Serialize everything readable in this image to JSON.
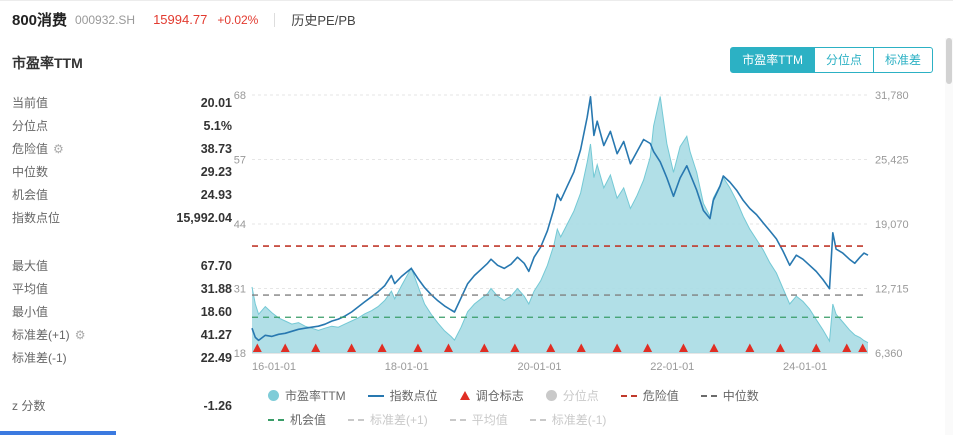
{
  "header": {
    "title": "800消费",
    "code": "000932.SH",
    "price": "15994.77",
    "change": "+0.02%",
    "nav_label": "历史PE/PB"
  },
  "panel": {
    "title": "市盈率TTM",
    "tabs": [
      {
        "label": "市盈率TTM",
        "active": true
      },
      {
        "label": "分位点",
        "active": false
      },
      {
        "label": "标准差",
        "active": false
      }
    ],
    "accent_color": "#2cb1c4"
  },
  "stats": {
    "groups": [
      [
        {
          "label": "当前值",
          "value": "20.01"
        },
        {
          "label": "分位点",
          "value": "5.1%"
        },
        {
          "label": "危险值",
          "value": "38.73",
          "gear": true
        },
        {
          "label": "中位数",
          "value": "29.23"
        },
        {
          "label": "机会值",
          "value": "24.93"
        },
        {
          "label": "指数点位",
          "value": "15,992.04"
        }
      ],
      [
        {
          "label": "最大值",
          "value": "67.70"
        },
        {
          "label": "平均值",
          "value": "31.88"
        },
        {
          "label": "最小值",
          "value": "18.60"
        },
        {
          "label": "标准差(+1)",
          "value": "41.27",
          "gear": true
        },
        {
          "label": "标准差(-1)",
          "value": "22.49"
        }
      ],
      [
        {
          "label": "z 分数",
          "value": "-1.26"
        }
      ]
    ]
  },
  "chart_data": {
    "type": "area+line",
    "title": "市盈率TTM",
    "x_range": [
      2016.0,
      2025.28
    ],
    "x_ticks": [
      {
        "label": "16-01-01",
        "t": 2016
      },
      {
        "label": "18-01-01",
        "t": 2018
      },
      {
        "label": "20-01-01",
        "t": 2020
      },
      {
        "label": "22-01-01",
        "t": 2022
      },
      {
        "label": "24-01-01",
        "t": 2024
      }
    ],
    "left_axis": {
      "min": 18,
      "max": 68,
      "tick_labels": [
        "18",
        "31",
        "44",
        "57",
        "68"
      ]
    },
    "right_axis": {
      "min": 6360,
      "max": 31780,
      "tick_labels": [
        "6,360",
        "12,715",
        "19,070",
        "25,425",
        "31,780"
      ]
    },
    "x": [
      2016.0,
      2016.05,
      2016.1,
      2016.2,
      2016.3,
      2016.4,
      2016.5,
      2016.6,
      2016.7,
      2016.8,
      2016.9,
      2017.0,
      2017.1,
      2017.2,
      2017.3,
      2017.4,
      2017.5,
      2017.6,
      2017.7,
      2017.8,
      2017.9,
      2018.0,
      2018.1,
      2018.15,
      2018.25,
      2018.4,
      2018.5,
      2018.6,
      2018.7,
      2018.8,
      2018.9,
      2019.0,
      2019.05,
      2019.15,
      2019.25,
      2019.35,
      2019.45,
      2019.55,
      2019.6,
      2019.7,
      2019.8,
      2019.9,
      2020.0,
      2020.1,
      2020.17,
      2020.25,
      2020.35,
      2020.45,
      2020.55,
      2020.6,
      2020.65,
      2020.75,
      2020.85,
      2020.95,
      2021.05,
      2021.1,
      2021.15,
      2021.2,
      2021.3,
      2021.4,
      2021.5,
      2021.6,
      2021.7,
      2021.8,
      2021.9,
      2022.0,
      2022.05,
      2022.15,
      2022.2,
      2022.25,
      2022.35,
      2022.45,
      2022.55,
      2022.6,
      2022.7,
      2022.8,
      2022.9,
      2022.95,
      2023.05,
      2023.1,
      2023.2,
      2023.3,
      2023.4,
      2023.5,
      2023.6,
      2023.7,
      2023.8,
      2023.9,
      2024.0,
      2024.1,
      2024.2,
      2024.3,
      2024.4,
      2024.5,
      2024.6,
      2024.7,
      2024.75,
      2024.8,
      2024.9,
      2025.0,
      2025.08,
      2025.16,
      2025.22,
      2025.28
    ],
    "series": [
      {
        "name": "市盈率TTM",
        "type": "area",
        "axis": "left",
        "color": "#a8dce4",
        "edge": "#74c9d5",
        "values": [
          30.8,
          27.5,
          25.5,
          27.0,
          25.8,
          24.8,
          24.2,
          23.6,
          23.9,
          23.2,
          22.8,
          22.4,
          22.8,
          23.2,
          23.0,
          23.6,
          24.2,
          24.8,
          25.6,
          26.2,
          27.0,
          28.2,
          30.0,
          28.5,
          31.0,
          34.5,
          31.0,
          27.5,
          25.5,
          23.8,
          22.3,
          21.2,
          20.5,
          23.0,
          26.0,
          27.5,
          28.5,
          29.5,
          30.5,
          29.0,
          28.2,
          29.0,
          30.5,
          29.0,
          27.5,
          30.0,
          32.0,
          35.0,
          39.0,
          42.0,
          40.5,
          43.0,
          45.5,
          49.0,
          55.0,
          58.5,
          52.0,
          54.5,
          50.0,
          52.5,
          48.0,
          50.0,
          46.0,
          48.5,
          51.5,
          56.0,
          62.0,
          67.7,
          63.0,
          58.5,
          53.0,
          58.0,
          60.0,
          57.0,
          53.0,
          47.0,
          44.5,
          48.0,
          50.5,
          52.0,
          50.0,
          47.5,
          44.5,
          42.0,
          40.0,
          38.0,
          35.5,
          33.5,
          30.5,
          27.5,
          29.0,
          28.0,
          26.5,
          24.5,
          22.5,
          20.3,
          27.5,
          25.5,
          24.0,
          22.5,
          21.5,
          21.0,
          20.4,
          20.0
        ]
      },
      {
        "name": "指数点位",
        "type": "line",
        "axis": "right",
        "color": "#2878b0",
        "values": [
          8800,
          7900,
          7600,
          8100,
          8000,
          8200,
          8300,
          8500,
          8700,
          8800,
          8900,
          9000,
          9200,
          9500,
          9700,
          10000,
          10400,
          10900,
          11400,
          11900,
          12400,
          13000,
          14000,
          13200,
          13900,
          14700,
          13700,
          12800,
          12100,
          11500,
          11000,
          10600,
          10400,
          11800,
          13200,
          14000,
          14600,
          15200,
          15600,
          15000,
          14700,
          15100,
          15800,
          15200,
          14400,
          15800,
          16800,
          18400,
          20600,
          22000,
          21400,
          22800,
          24200,
          26400,
          29600,
          31600,
          27800,
          29200,
          26800,
          28200,
          26000,
          27200,
          25000,
          26200,
          27400,
          27000,
          26200,
          25200,
          24400,
          23600,
          21800,
          23600,
          24800,
          24000,
          22400,
          20400,
          19600,
          21400,
          22800,
          23800,
          23200,
          22400,
          21400,
          20600,
          20000,
          19200,
          18400,
          17600,
          16400,
          15000,
          16000,
          15600,
          15000,
          14400,
          13600,
          12700,
          18200,
          16600,
          16200,
          15600,
          15200,
          15800,
          16200,
          15992
        ]
      }
    ],
    "rebalance_markers": {
      "name": "调仓标志",
      "color": "#e02e24",
      "x": [
        2016.08,
        2016.5,
        2016.96,
        2017.5,
        2017.96,
        2018.5,
        2018.96,
        2019.5,
        2019.96,
        2020.5,
        2020.96,
        2021.5,
        2021.96,
        2022.5,
        2022.96,
        2023.5,
        2023.96,
        2024.5,
        2024.96,
        2025.2
      ]
    },
    "ref_lines": [
      {
        "name": "危险值",
        "value": 38.73,
        "color": "#c0392b"
      },
      {
        "name": "中位数",
        "value": 29.23,
        "color": "#808080"
      },
      {
        "name": "机会值",
        "value": 24.93,
        "color": "#3a9d68"
      }
    ]
  },
  "legend": {
    "rows": [
      [
        {
          "label": "市盈率TTM",
          "marker": "circle",
          "color": "#7fccd8",
          "disabled": false
        },
        {
          "label": "指数点位",
          "marker": "line",
          "color": "#2878b0",
          "disabled": false
        },
        {
          "label": "调仓标志",
          "marker": "triangle",
          "color": "#e02e24",
          "disabled": false
        },
        {
          "label": "分位点",
          "marker": "circle",
          "color": "#c9c9c9",
          "disabled": true
        },
        {
          "label": "危险值",
          "marker": "dashed",
          "color": "#c0392b",
          "disabled": false
        },
        {
          "label": "中位数",
          "marker": "dashed",
          "color": "#6b6b6b",
          "disabled": false
        }
      ],
      [
        {
          "label": "机会值",
          "marker": "dashed",
          "color": "#3a9d68",
          "disabled": false
        },
        {
          "label": "标准差(+1)",
          "marker": "dashed",
          "color": "#c9c9c9",
          "disabled": true
        },
        {
          "label": "平均值",
          "marker": "dashed",
          "color": "#c9c9c9",
          "disabled": true
        },
        {
          "label": "标准差(-1)",
          "marker": "dashed",
          "color": "#c9c9c9",
          "disabled": true
        }
      ]
    ]
  }
}
